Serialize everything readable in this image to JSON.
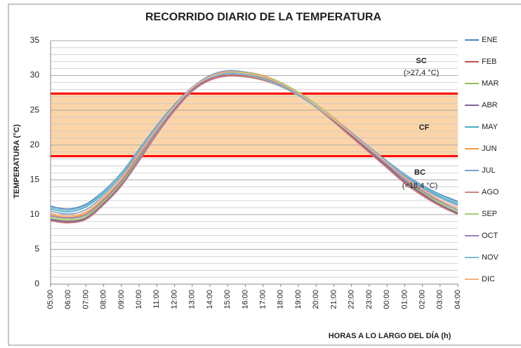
{
  "chart_data": {
    "type": "line",
    "title": "RECORRIDO DIARIO DE LA TEMPERATURA",
    "x_label": "HORAS A LO LARGO DEL DÍA (h)",
    "y_label": "TEMPERATURA (°C)",
    "categories": [
      "05:00",
      "06:00",
      "07:00",
      "08:00",
      "09:00",
      "10:00",
      "11:00",
      "12:00",
      "13:00",
      "14:00",
      "15:00",
      "16:00",
      "17:00",
      "18:00",
      "19:00",
      "20:00",
      "21:00",
      "22:00",
      "23:00",
      "00:00",
      "01:00",
      "02:00",
      "03:00",
      "04:00"
    ],
    "ylim": [
      0,
      35
    ],
    "yticks": [
      0,
      5,
      10,
      15,
      20,
      25,
      30,
      35
    ],
    "minor_yticks": [
      1,
      2,
      3,
      4,
      6,
      7,
      8,
      9,
      11,
      12,
      13,
      14,
      16,
      17,
      18,
      19,
      21,
      22,
      23,
      24,
      26,
      27,
      28,
      29,
      31,
      32,
      33,
      34
    ],
    "grid": true,
    "legend": "right",
    "comfort_zone": {
      "lower": 18.4,
      "upper": 27.4,
      "line_color": "#ff0000",
      "fill": "#fbd5a8"
    },
    "annotations": [
      {
        "text": "SC"
      },
      {
        "text": "(>27,4 °C)"
      },
      {
        "text": "CF"
      },
      {
        "text": "BC"
      },
      {
        "text": "(<18,4 °C)"
      }
    ],
    "series": [
      {
        "name": "ENE",
        "color": "#4f81bd",
        "values": [
          11.2,
          10.8,
          11.5,
          13.4,
          16.0,
          19.4,
          22.8,
          25.8,
          28.3,
          29.8,
          30.4,
          30.2,
          29.6,
          28.6,
          27.2,
          25.6,
          23.7,
          21.7,
          19.7,
          17.7,
          15.8,
          14.2,
          12.9,
          11.9
        ]
      },
      {
        "name": "FEB",
        "color": "#c0504d",
        "values": [
          9.2,
          8.9,
          9.4,
          11.5,
          14.2,
          17.8,
          21.6,
          25.0,
          27.8,
          29.4,
          30.0,
          29.9,
          29.4,
          28.5,
          27.2,
          25.5,
          23.4,
          21.2,
          19.0,
          16.8,
          14.6,
          12.8,
          11.3,
          10.1
        ]
      },
      {
        "name": "MAR",
        "color": "#9bbb59",
        "values": [
          9.4,
          9.1,
          9.6,
          11.7,
          14.4,
          18.0,
          21.8,
          25.2,
          28.0,
          29.7,
          30.3,
          30.2,
          29.7,
          28.8,
          27.5,
          25.8,
          23.7,
          21.5,
          19.3,
          17.1,
          14.9,
          13.1,
          11.5,
          10.3
        ]
      },
      {
        "name": "ABR",
        "color": "#8064a2",
        "values": [
          9.3,
          9.0,
          9.5,
          11.6,
          14.3,
          17.9,
          21.7,
          25.1,
          27.9,
          29.6,
          30.2,
          30.1,
          29.6,
          28.7,
          27.4,
          25.7,
          23.6,
          21.4,
          19.2,
          17.0,
          14.8,
          13.0,
          11.4,
          10.2
        ]
      },
      {
        "name": "MAY",
        "color": "#4bacc6",
        "values": [
          10.8,
          10.4,
          11.1,
          13.1,
          15.8,
          19.2,
          22.6,
          25.6,
          28.2,
          29.8,
          30.4,
          30.2,
          29.6,
          28.6,
          27.2,
          25.6,
          23.6,
          21.6,
          19.6,
          17.6,
          15.6,
          14.0,
          12.6,
          11.5
        ]
      },
      {
        "name": "JUN",
        "color": "#f79646",
        "values": [
          10.0,
          9.6,
          10.2,
          12.3,
          15.0,
          18.6,
          22.2,
          25.4,
          28.2,
          29.9,
          30.6,
          30.5,
          30.0,
          29.0,
          27.6,
          25.9,
          23.9,
          21.8,
          19.6,
          17.5,
          15.3,
          13.6,
          12.1,
          11.0
        ]
      },
      {
        "name": "JUL",
        "color": "#7f9fcf",
        "values": [
          10.5,
          10.1,
          10.7,
          12.8,
          15.5,
          19.0,
          22.5,
          25.6,
          28.3,
          30.0,
          30.7,
          30.5,
          29.9,
          28.9,
          27.5,
          25.8,
          23.8,
          21.8,
          19.7,
          17.6,
          15.5,
          13.8,
          12.4,
          11.3
        ]
      },
      {
        "name": "AGO",
        "color": "#c98583",
        "values": [
          9.1,
          8.8,
          9.3,
          11.4,
          14.1,
          17.7,
          21.5,
          24.9,
          27.7,
          29.3,
          29.9,
          29.8,
          29.3,
          28.4,
          27.1,
          25.4,
          23.3,
          21.1,
          18.9,
          16.7,
          14.5,
          12.7,
          11.2,
          10.0
        ]
      },
      {
        "name": "SEP",
        "color": "#aac97a",
        "values": [
          9.6,
          9.3,
          9.8,
          11.9,
          14.6,
          18.2,
          21.9,
          25.3,
          28.1,
          29.8,
          30.5,
          30.4,
          29.9,
          29.0,
          27.6,
          25.9,
          23.8,
          21.6,
          19.4,
          17.2,
          15.0,
          13.3,
          11.7,
          10.5
        ]
      },
      {
        "name": "OCT",
        "color": "#9883b5",
        "values": [
          9.8,
          9.5,
          10.0,
          12.1,
          14.8,
          18.4,
          22.0,
          25.3,
          28.0,
          29.6,
          30.2,
          30.1,
          29.6,
          28.7,
          27.3,
          25.6,
          23.6,
          21.5,
          19.3,
          17.2,
          15.1,
          13.4,
          11.9,
          10.7
        ]
      },
      {
        "name": "NOV",
        "color": "#76c0d4",
        "values": [
          11.0,
          10.6,
          11.3,
          13.3,
          15.9,
          19.3,
          22.7,
          25.7,
          28.2,
          29.7,
          30.3,
          30.1,
          29.5,
          28.5,
          27.1,
          25.5,
          23.6,
          21.6,
          19.6,
          17.6,
          15.7,
          14.1,
          12.8,
          11.7
        ]
      },
      {
        "name": "DIC",
        "color": "#f9b27a",
        "values": [
          10.2,
          9.8,
          10.4,
          12.5,
          15.2,
          18.8,
          22.3,
          25.5,
          28.2,
          29.8,
          30.5,
          30.3,
          29.8,
          28.8,
          27.4,
          25.7,
          23.7,
          21.6,
          19.5,
          17.4,
          15.3,
          13.6,
          12.1,
          11.0
        ]
      }
    ]
  }
}
